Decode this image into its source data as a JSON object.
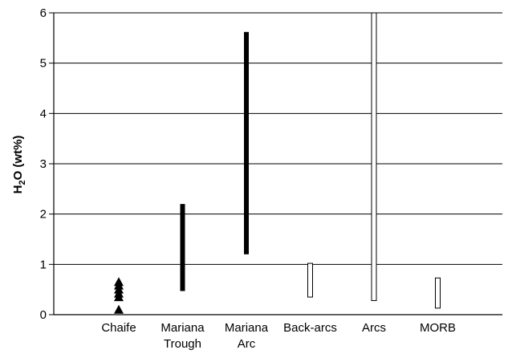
{
  "chart_data": {
    "type": "range",
    "ylabel_parts": [
      "H",
      "2",
      "O (wt%)"
    ],
    "ylim": [
      0,
      6
    ],
    "yticks": [
      "0",
      "1",
      "2",
      "3",
      "4",
      "5",
      "6"
    ],
    "grid": true,
    "categories": [
      [
        "Chaife"
      ],
      [
        "Mariana",
        "Trough"
      ],
      [
        "Mariana",
        "Arc"
      ],
      [
        "Back-arcs"
      ],
      [
        "Arcs"
      ],
      [
        "MORB"
      ]
    ],
    "points": [
      {
        "category": "Chaife",
        "values": [
          0.1,
          0.35,
          0.42,
          0.5,
          0.58,
          0.65
        ]
      }
    ],
    "ranges": [
      {
        "category": "Mariana Trough",
        "min": 0.47,
        "max": 2.2,
        "style": "filled"
      },
      {
        "category": "Mariana Arc",
        "min": 1.2,
        "max": 5.62,
        "style": "filled"
      },
      {
        "category": "Back-arcs",
        "min": 0.35,
        "max": 1.02,
        "style": "open"
      },
      {
        "category": "Arcs",
        "min": 0.28,
        "max": 6.0,
        "style": "open"
      },
      {
        "category": "MORB",
        "min": 0.13,
        "max": 0.73,
        "style": "open"
      }
    ],
    "colors": {
      "filled": "#000000",
      "open_fill": "#ffffff",
      "stroke": "#000000"
    }
  }
}
